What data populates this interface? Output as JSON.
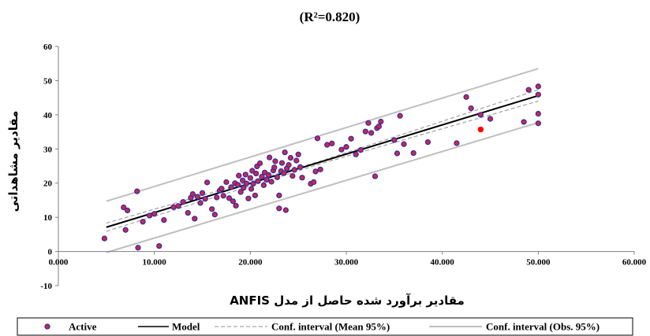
{
  "chart_data": {
    "type": "scatter",
    "title": "(R²=0.820)",
    "xlabel": "مقادیر برآورد شده حاصل از مدل ANFIS",
    "ylabel": "مقادیر مشاهداتی",
    "xlim": [
      0,
      60
    ],
    "ylim": [
      -10,
      60
    ],
    "x_ticks": [
      "0.000",
      "10.000",
      "20.000",
      "30.000",
      "40.000",
      "50.000",
      "60.000"
    ],
    "y_ticks": [
      "-10",
      "0",
      "10",
      "20",
      "30",
      "40",
      "50",
      "60"
    ],
    "grid": false,
    "legend_position": "bottom",
    "colors": {
      "active_fill": "#d0283c",
      "active_edge": "#3a2bb0",
      "highlight": "#ff0000",
      "model": "#000000",
      "mean_ci": "#a6a6a6",
      "obs_ci": "#bfbfbf"
    },
    "series": [
      {
        "name": "Active",
        "type": "scatter",
        "points": [
          [
            4.8,
            3.8
          ],
          [
            6.8,
            12.9
          ],
          [
            7.0,
            6.3
          ],
          [
            7.2,
            12.0
          ],
          [
            8.2,
            17.6
          ],
          [
            8.3,
            1.1
          ],
          [
            8.8,
            8.7
          ],
          [
            9.5,
            10.5
          ],
          [
            10.0,
            11.0
          ],
          [
            10.5,
            1.6
          ],
          [
            11.0,
            9.2
          ],
          [
            12.0,
            13.0
          ],
          [
            12.5,
            13.3
          ],
          [
            13.0,
            14.5
          ],
          [
            13.5,
            11.3
          ],
          [
            13.8,
            15.7
          ],
          [
            14.0,
            16.8
          ],
          [
            14.2,
            9.6
          ],
          [
            14.5,
            16.0
          ],
          [
            14.8,
            14.2
          ],
          [
            15.0,
            17.1
          ],
          [
            15.3,
            15.4
          ],
          [
            15.5,
            20.2
          ],
          [
            16.0,
            12.4
          ],
          [
            16.3,
            10.8
          ],
          [
            16.5,
            15.8
          ],
          [
            16.8,
            17.8
          ],
          [
            17.0,
            18.4
          ],
          [
            17.2,
            16.3
          ],
          [
            17.5,
            20.3
          ],
          [
            17.8,
            15.6
          ],
          [
            18.0,
            18.8
          ],
          [
            18.2,
            14.7
          ],
          [
            18.4,
            20.0
          ],
          [
            18.5,
            13.4
          ],
          [
            18.7,
            19.5
          ],
          [
            18.8,
            22.2
          ],
          [
            19.0,
            17.4
          ],
          [
            19.2,
            20.8
          ],
          [
            19.3,
            18.6
          ],
          [
            19.5,
            22.5
          ],
          [
            19.6,
            19.9
          ],
          [
            19.8,
            15.5
          ],
          [
            20.0,
            21.5
          ],
          [
            20.1,
            18.3
          ],
          [
            20.2,
            23.6
          ],
          [
            20.3,
            19.8
          ],
          [
            20.5,
            16.4
          ],
          [
            20.6,
            22.8
          ],
          [
            20.7,
            24.9
          ],
          [
            20.8,
            20.6
          ],
          [
            21.0,
            25.8
          ],
          [
            21.2,
            21.9
          ],
          [
            21.4,
            19.4
          ],
          [
            21.5,
            23.1
          ],
          [
            21.7,
            21.0
          ],
          [
            21.9,
            22.4
          ],
          [
            22.0,
            27.5
          ],
          [
            22.2,
            20.4
          ],
          [
            22.4,
            23.7
          ],
          [
            22.5,
            24.6
          ],
          [
            22.6,
            26.4
          ],
          [
            22.8,
            21.7
          ],
          [
            23.0,
            16.4
          ],
          [
            23.0,
            12.6
          ],
          [
            23.2,
            23.5
          ],
          [
            23.3,
            25.9
          ],
          [
            23.5,
            22.9
          ],
          [
            23.6,
            29.0
          ],
          [
            23.7,
            12.1
          ],
          [
            23.8,
            24.3
          ],
          [
            24.0,
            25.3
          ],
          [
            24.2,
            27.4
          ],
          [
            24.4,
            22.1
          ],
          [
            24.6,
            23.9
          ],
          [
            24.8,
            26.6
          ],
          [
            25.0,
            28.4
          ],
          [
            25.2,
            24.7
          ],
          [
            25.4,
            21.6
          ],
          [
            26.3,
            19.8
          ],
          [
            26.6,
            20.3
          ],
          [
            26.8,
            23.4
          ],
          [
            27.0,
            33.1
          ],
          [
            27.3,
            24.0
          ],
          [
            28.0,
            31.2
          ],
          [
            28.5,
            31.6
          ],
          [
            29.5,
            29.8
          ],
          [
            30.0,
            30.6
          ],
          [
            30.5,
            33.0
          ],
          [
            31.0,
            28.4
          ],
          [
            31.5,
            29.7
          ],
          [
            32.0,
            35.1
          ],
          [
            32.3,
            37.6
          ],
          [
            32.6,
            34.7
          ],
          [
            33.0,
            22.0
          ],
          [
            33.2,
            36.1
          ],
          [
            33.4,
            36.6
          ],
          [
            33.6,
            38.0
          ],
          [
            35.0,
            32.6
          ],
          [
            35.3,
            28.7
          ],
          [
            35.6,
            39.7
          ],
          [
            36.0,
            31.4
          ],
          [
            37.0,
            28.8
          ],
          [
            38.5,
            32.0
          ],
          [
            41.5,
            31.7
          ],
          [
            42.5,
            45.2
          ],
          [
            43.0,
            41.9
          ],
          [
            44.0,
            40.0
          ],
          [
            45.0,
            38.8
          ],
          [
            48.5,
            37.9
          ],
          [
            49.0,
            47.3
          ],
          [
            50.0,
            48.3
          ],
          [
            50.0,
            45.9
          ],
          [
            50.0,
            40.3
          ],
          [
            50.0,
            37.5
          ]
        ]
      },
      {
        "name": "Model",
        "type": "line",
        "points": [
          [
            5,
            7.1
          ],
          [
            50,
            45.6
          ]
        ]
      },
      {
        "name": "Conf. interval (Mean 95%)",
        "type": "band",
        "upper": [
          [
            5,
            8.3
          ],
          [
            27.5,
            26.6
          ],
          [
            50,
            47.3
          ]
        ],
        "lower": [
          [
            5,
            5.9
          ],
          [
            27.5,
            25.8
          ],
          [
            50,
            44.0
          ]
        ]
      },
      {
        "name": "Conf. interval (Obs. 95%)",
        "type": "band",
        "upper": [
          [
            5,
            14.7
          ],
          [
            50,
            53.5
          ]
        ],
        "lower": [
          [
            5,
            -0.3
          ],
          [
            50,
            37.7
          ]
        ]
      }
    ],
    "highlight_point": [
      44.0,
      35.7
    ]
  }
}
